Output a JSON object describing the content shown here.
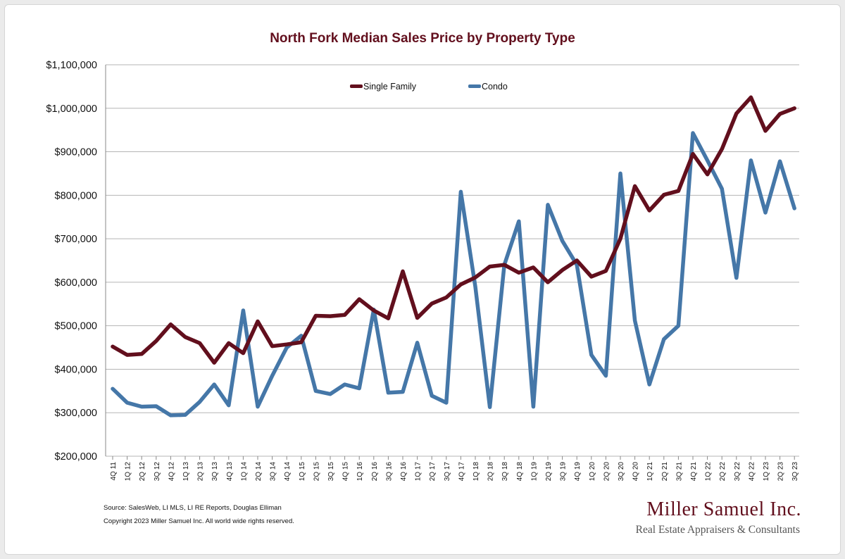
{
  "colors": {
    "single_family": "#620f1d",
    "condo": "#4577a8",
    "title": "#620f1d",
    "brand": "#620f1d",
    "grid": "#b5b5b5"
  },
  "chart_data": {
    "type": "line",
    "title": "North Fork Median Sales Price by Property Type",
    "xlabel": "",
    "ylabel": "",
    "ylim": [
      200000,
      1100000
    ],
    "yticks": [
      200000,
      300000,
      400000,
      500000,
      600000,
      700000,
      800000,
      900000,
      1000000,
      1100000
    ],
    "ytick_labels": [
      "$200,000",
      "$300,000",
      "$400,000",
      "$500,000",
      "$600,000",
      "$700,000",
      "$800,000",
      "$900,000",
      "$1,000,000",
      "$1,100,000"
    ],
    "grid": true,
    "legend_position": "top",
    "categories": [
      "4Q 11",
      "1Q 12",
      "2Q 12",
      "3Q 12",
      "4Q 12",
      "1Q 13",
      "2Q 13",
      "3Q 13",
      "4Q 13",
      "1Q 14",
      "2Q 14",
      "3Q 14",
      "4Q 14",
      "1Q 15",
      "2Q 15",
      "3Q 15",
      "4Q 15",
      "1Q 16",
      "2Q 16",
      "3Q 16",
      "4Q 16",
      "1Q 17",
      "2Q 17",
      "3Q 17",
      "4Q 17",
      "1Q 18",
      "2Q 18",
      "3Q 18",
      "4Q 18",
      "1Q 19",
      "2Q 19",
      "3Q 19",
      "4Q 19",
      "1Q 20",
      "2Q 20",
      "3Q 20",
      "4Q 20",
      "1Q 21",
      "2Q 21",
      "3Q 21",
      "4Q 21",
      "1Q 22",
      "2Q 22",
      "3Q 22",
      "4Q 22",
      "1Q 23",
      "2Q 23",
      "3Q 23"
    ],
    "series": [
      {
        "name": "Single Family",
        "color": "#620f1d",
        "values": [
          452000,
          433000,
          435000,
          465000,
          503000,
          474000,
          460000,
          415000,
          460000,
          437000,
          510000,
          453000,
          457000,
          462000,
          523000,
          522000,
          525000,
          561000,
          535000,
          517000,
          625000,
          518000,
          551000,
          565000,
          595000,
          611000,
          636000,
          640000,
          622000,
          634000,
          600000,
          628000,
          650000,
          613000,
          626000,
          700000,
          821000,
          765000,
          801000,
          810000,
          895000,
          848000,
          906000,
          988000,
          1025000,
          948000,
          987000,
          1000000
        ]
      },
      {
        "name": "Condo",
        "color": "#4577a8",
        "values": [
          355000,
          323000,
          314000,
          315000,
          294000,
          295000,
          325000,
          365000,
          317000,
          535000,
          314000,
          385000,
          450000,
          477000,
          350000,
          343000,
          365000,
          356000,
          537000,
          346000,
          348000,
          461000,
          339000,
          323000,
          808000,
          590000,
          313000,
          640000,
          740000,
          314000,
          778000,
          695000,
          640000,
          433000,
          385000,
          850000,
          512000,
          365000,
          469000,
          500000,
          943000,
          880000,
          815000,
          610000,
          880000,
          760000,
          878000,
          770000
        ]
      }
    ]
  },
  "footer": {
    "source": "Source: SalesWeb, LI MLS, LI RE Reports, Douglas Elliman",
    "copyright": "Copyright 2023 Miller Samuel Inc.  All world wide rights reserved."
  },
  "brand": {
    "name": "Miller Samuel Inc.",
    "tagline": "Real Estate Appraisers & Consultants"
  }
}
